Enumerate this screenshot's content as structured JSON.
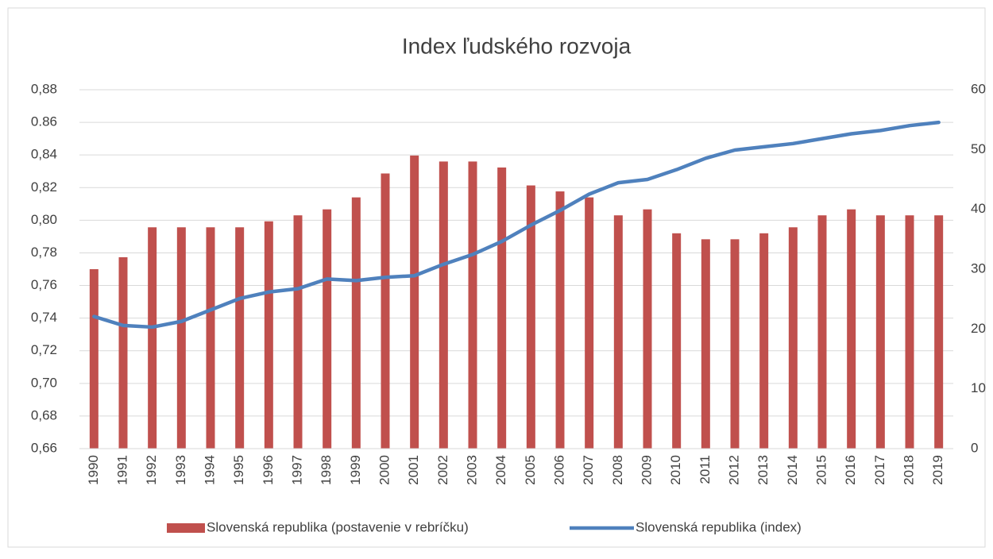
{
  "chart_data": {
    "type": "bar_line",
    "title": "Index ľudského rozvoja",
    "categories": [
      "1990",
      "1991",
      "1992",
      "1993",
      "1994",
      "1995",
      "1996",
      "1997",
      "1998",
      "1999",
      "2000",
      "2001",
      "2002",
      "2003",
      "2004",
      "2005",
      "2006",
      "2007",
      "2008",
      "2009",
      "2010",
      "2011",
      "2012",
      "2013",
      "2014",
      "2015",
      "2016",
      "2017",
      "2018",
      "2019"
    ],
    "series": [
      {
        "name": "Slovenská republika (postavenie v rebríčku)",
        "color": "#c0504d",
        "type": "bar",
        "axis": "y2",
        "values": [
          30,
          32,
          37,
          37,
          37,
          37,
          38,
          39,
          40,
          42,
          46,
          49,
          48,
          48,
          47,
          44,
          43,
          42,
          39,
          40,
          36,
          35,
          35,
          36,
          37,
          39,
          40,
          39,
          39,
          39
        ]
      },
      {
        "name": "Slovenská republika (index)",
        "color": "#4f81bd",
        "type": "line",
        "values": [
          0.741,
          0.7355,
          0.7345,
          0.738,
          0.745,
          0.752,
          0.756,
          0.758,
          0.764,
          0.763,
          0.765,
          0.766,
          0.773,
          0.779,
          0.787,
          0.797,
          0.806,
          0.816,
          0.823,
          0.825,
          0.831,
          0.838,
          0.843,
          0.845,
          0.847,
          0.85,
          0.853,
          0.855,
          0.858,
          0.86
        ]
      }
    ],
    "ylim": [
      0.66,
      0.88
    ],
    "yticks": [
      {
        "value": 0.66,
        "label": "0,66"
      },
      {
        "value": 0.68,
        "label": "0,68"
      },
      {
        "value": 0.7,
        "label": "0,70"
      },
      {
        "value": 0.72,
        "label": "0,72"
      },
      {
        "value": 0.74,
        "label": "0,74"
      },
      {
        "value": 0.76,
        "label": "0,76"
      },
      {
        "value": 0.78,
        "label": "0,78"
      },
      {
        "value": 0.8,
        "label": "0,80"
      },
      {
        "value": 0.82,
        "label": "0,82"
      },
      {
        "value": 0.84,
        "label": "0,84"
      },
      0.86,
      {
        "value": 0.88,
        "label": "0,88"
      }
    ],
    "y2lim": [
      0,
      60
    ],
    "y2ticks": [
      0,
      10,
      20,
      30,
      40,
      50,
      60
    ],
    "grid": true,
    "legend": "bottom"
  }
}
